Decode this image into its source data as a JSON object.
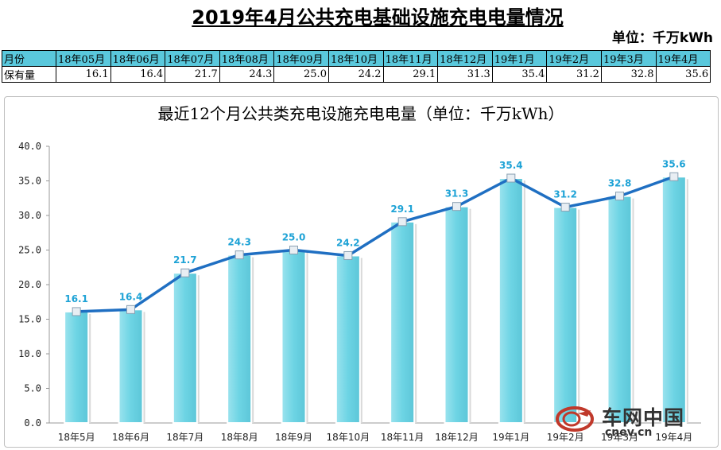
{
  "page": {
    "title": "2019年4月公共充电基础设施充电电量情况",
    "unit": "单位：千万kWh"
  },
  "table": {
    "row1_header": "月份",
    "row2_header": "保有量",
    "months": [
      "18年05月",
      "18年06月",
      "18年07月",
      "18年08月",
      "18年09月",
      "18年10月",
      "18年11月",
      "18年12月",
      "19年1月",
      "19年2月",
      "19年3月",
      "19年4月"
    ],
    "values": [
      "16.1",
      "16.4",
      "21.7",
      "24.3",
      "25.0",
      "24.2",
      "29.1",
      "31.3",
      "35.4",
      "31.2",
      "32.8",
      "35.6"
    ]
  },
  "chart_data": {
    "type": "bar",
    "title": "最近12个月公共类充电设施充电电量（单位：千万kWh）",
    "categories": [
      "18年5月",
      "18年6月",
      "18年7月",
      "18年8月",
      "18年9月",
      "18年10月",
      "18年11月",
      "18年12月",
      "19年1月",
      "19年2月",
      "19年3月",
      "19年4月"
    ],
    "values": [
      16.1,
      16.4,
      21.7,
      24.3,
      25.0,
      24.2,
      29.1,
      31.3,
      35.4,
      31.2,
      32.8,
      35.6
    ],
    "line_overlay": true,
    "ylim": [
      0,
      40
    ],
    "yticks": [
      "0.0",
      "5.0",
      "10.0",
      "15.0",
      "20.0",
      "25.0",
      "30.0",
      "35.0",
      "40.0"
    ],
    "grid": false,
    "colors": {
      "bar": "#6dd4e4",
      "line": "#1f6fc2",
      "label": "#1fa3d6"
    }
  },
  "watermark": {
    "name": "车网中国",
    "url": "cnev.cn"
  }
}
